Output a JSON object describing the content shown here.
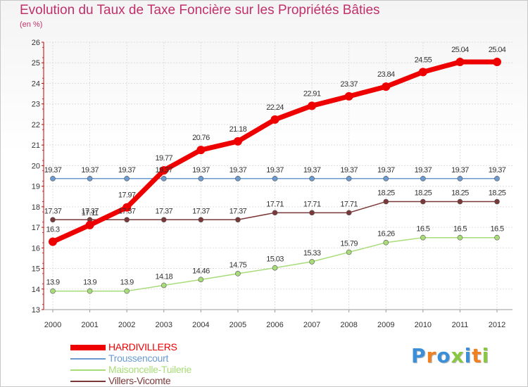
{
  "chart_data": {
    "type": "line",
    "title": "Evolution du Taux de Taxe Foncière sur les Propriétés Bâties",
    "unit_label": "(en %)",
    "x": [
      "2000",
      "2001",
      "2002",
      "2003",
      "2004",
      "2005",
      "2006",
      "2007",
      "2008",
      "2009",
      "2010",
      "2011",
      "2012"
    ],
    "ylim": [
      13,
      26
    ],
    "yticks": [
      "13",
      "14",
      "15",
      "16",
      "17",
      "18",
      "19",
      "20",
      "21",
      "22",
      "23",
      "24",
      "25",
      "26"
    ],
    "grid": true,
    "legend_position": "bottom-left",
    "series": [
      {
        "name": "HARDIVILLERS",
        "color": "#ee0000",
        "values": [
          16.3,
          17.11,
          17.97,
          19.77,
          20.76,
          21.18,
          22.24,
          22.91,
          23.37,
          23.84,
          24.55,
          25.04,
          25.04
        ],
        "labels": [
          "16.3",
          "17.11",
          "17.97",
          "19.77",
          "20.76",
          "21.18",
          "22.24",
          "22.91",
          "23.37",
          "23.84",
          "24.55",
          "25.04",
          "25.04"
        ]
      },
      {
        "name": "Troussencourt",
        "color": "#6a9ad0",
        "values": [
          19.37,
          19.37,
          19.37,
          19.37,
          19.37,
          19.37,
          19.37,
          19.37,
          19.37,
          19.37,
          19.37,
          19.37,
          19.37
        ],
        "labels": [
          "19.37",
          "19.37",
          "19.37",
          "19.37",
          "19.37",
          "19.37",
          "19.37",
          "19.37",
          "19.37",
          "19.37",
          "19.37",
          "19.37",
          "19.37"
        ]
      },
      {
        "name": "Maisoncelle-Tuilerie",
        "color": "#a8dc78",
        "values": [
          13.9,
          13.9,
          13.9,
          14.18,
          14.46,
          14.75,
          15.03,
          15.33,
          15.79,
          16.26,
          16.5,
          16.5,
          16.5
        ],
        "labels": [
          "13.9",
          "13.9",
          "13.9",
          "14.18",
          "14.46",
          "14.75",
          "15.03",
          "15.33",
          "15.79",
          "16.26",
          "16.5",
          "16.5",
          "16.5"
        ]
      },
      {
        "name": "Villers-Vicomte",
        "color": "#7a3838",
        "values": [
          17.37,
          17.37,
          17.37,
          17.37,
          17.37,
          17.37,
          17.71,
          17.71,
          17.71,
          18.25,
          18.25,
          18.25,
          18.25
        ],
        "labels": [
          "17.37",
          "17.37",
          "17.37",
          "17.37",
          "17.37",
          "17.37",
          "17.71",
          "17.71",
          "17.71",
          "18.25",
          "18.25",
          "18.25",
          "18.25"
        ]
      }
    ]
  },
  "logo": {
    "letters": [
      "P",
      "r",
      "o",
      "x",
      "i",
      "t",
      "i"
    ],
    "colors": [
      "#3a8fd8",
      "#f08020",
      "#3a8fd8",
      "#88c840",
      "#3a8fd8",
      "#f08020",
      "#88c840"
    ]
  }
}
